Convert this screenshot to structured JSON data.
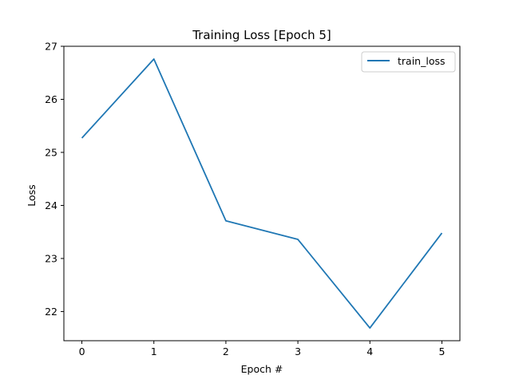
{
  "chart_data": {
    "type": "line",
    "title": "Training Loss [Epoch 5]",
    "xlabel": "Epoch #",
    "ylabel": "Loss",
    "x": [
      0,
      1,
      2,
      3,
      4,
      5
    ],
    "series": [
      {
        "name": "train_loss",
        "color": "#1f77b4",
        "values": [
          25.27,
          26.76,
          23.71,
          23.36,
          21.69,
          23.48
        ]
      }
    ],
    "xticks": [
      0,
      1,
      2,
      3,
      4,
      5
    ],
    "yticks": [
      22,
      23,
      24,
      25,
      26,
      27
    ],
    "xlim": [
      -0.25,
      5.25
    ],
    "ylim": [
      21.45,
      27.0
    ],
    "grid": false,
    "legend_position": "top-right"
  }
}
